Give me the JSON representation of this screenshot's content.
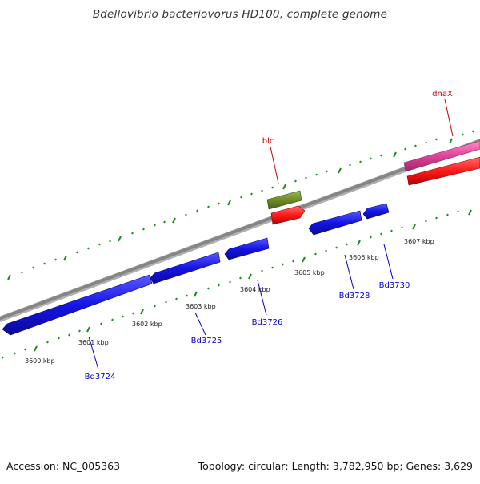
{
  "title": "Bdellovibrio bacteriovorus HD100, complete genome",
  "footer": {
    "accession": "Accession: NC_005363",
    "summary": "Topology: circular; Length: 3,782,950 bp; Genes: 3,629"
  },
  "colors": {
    "background": "#ffffff",
    "backbone": "#8a8a8a",
    "tick": "#1f8a1f",
    "cds_forward": "#ff1a1a",
    "cds_reverse": "#1414e6",
    "rna": "#e0409a",
    "gene_other": "#6e8c24",
    "feature_label_red": "#cc0000",
    "feature_label_blue": "#0000cc",
    "tick_label": "#222222"
  },
  "scale": {
    "units": "kbp",
    "tick_labels": [
      "3600 kbp",
      "3601 kbp",
      "3602 kbp",
      "3603 kbp",
      "3604 kbp",
      "3605 kbp",
      "3606 kbp",
      "3607 kbp"
    ]
  },
  "features": {
    "upper_labels": [
      "blc",
      "dnaX"
    ],
    "lower_labels": [
      "Bd3724",
      "Bd3725",
      "Bd3726",
      "Bd3728",
      "Bd3730"
    ]
  }
}
